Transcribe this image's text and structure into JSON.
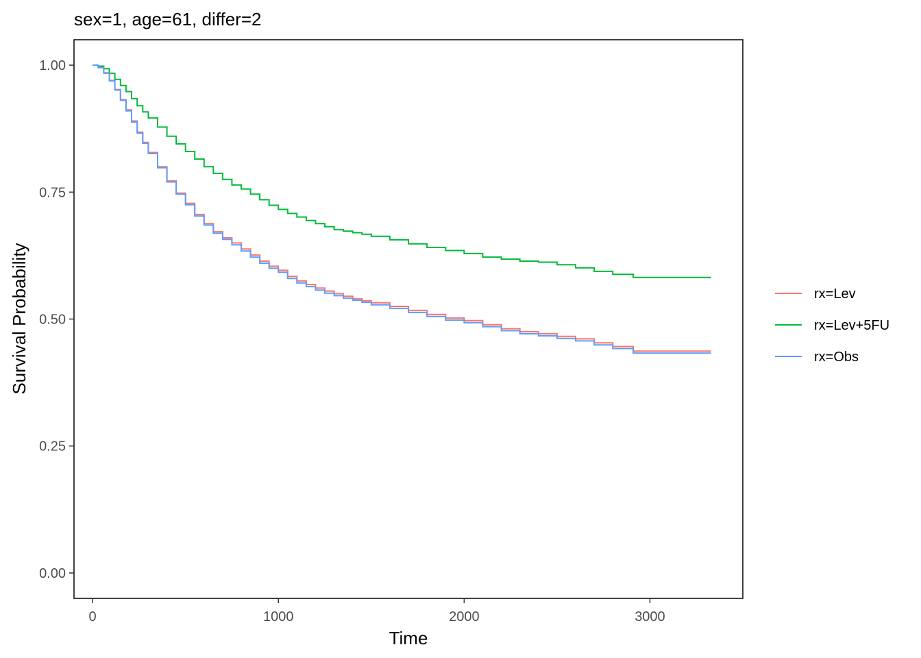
{
  "chart_data": {
    "type": "line",
    "title": "sex=1, age=61, differ=2",
    "xlabel": "Time",
    "ylabel": "Survival Probability",
    "xlim": [
      -100,
      3500
    ],
    "ylim": [
      -0.05,
      1.05
    ],
    "xticks": [
      0,
      1000,
      2000,
      3000
    ],
    "xtick_labels": [
      "0",
      "1000",
      "2000",
      "3000"
    ],
    "yticks": [
      0,
      0.25,
      0.5,
      0.75,
      1.0
    ],
    "ytick_labels": [
      "0.00",
      "0.25",
      "0.50",
      "0.75",
      "1.00"
    ],
    "grid": false,
    "legend_position": "right",
    "series": [
      {
        "name": "rx=Lev",
        "color": "#F8766D",
        "x": [
          0,
          30,
          60,
          90,
          120,
          150,
          180,
          210,
          240,
          270,
          300,
          350,
          400,
          450,
          500,
          550,
          600,
          650,
          700,
          750,
          800,
          850,
          900,
          950,
          1000,
          1050,
          1100,
          1150,
          1200,
          1250,
          1300,
          1350,
          1400,
          1450,
          1500,
          1600,
          1700,
          1800,
          1900,
          2000,
          2100,
          2200,
          2300,
          2400,
          2500,
          2600,
          2700,
          2800,
          2910,
          3000,
          3329
        ],
        "y": [
          1.0,
          0.996,
          0.985,
          0.97,
          0.952,
          0.932,
          0.912,
          0.89,
          0.868,
          0.848,
          0.828,
          0.8,
          0.772,
          0.748,
          0.728,
          0.706,
          0.688,
          0.672,
          0.66,
          0.65,
          0.638,
          0.626,
          0.614,
          0.604,
          0.596,
          0.584,
          0.575,
          0.568,
          0.561,
          0.555,
          0.55,
          0.545,
          0.54,
          0.536,
          0.532,
          0.525,
          0.517,
          0.509,
          0.502,
          0.497,
          0.489,
          0.481,
          0.475,
          0.471,
          0.466,
          0.461,
          0.453,
          0.446,
          0.437,
          0.437,
          0.437
        ]
      },
      {
        "name": "rx=Lev+5FU",
        "color": "#00BA38",
        "x": [
          0,
          30,
          60,
          90,
          120,
          150,
          180,
          210,
          240,
          270,
          300,
          350,
          400,
          450,
          500,
          550,
          600,
          650,
          700,
          750,
          800,
          850,
          900,
          950,
          1000,
          1050,
          1100,
          1150,
          1200,
          1250,
          1300,
          1350,
          1400,
          1450,
          1500,
          1600,
          1700,
          1800,
          1900,
          2000,
          2100,
          2200,
          2300,
          2400,
          2500,
          2600,
          2700,
          2800,
          2910,
          3000,
          3329
        ],
        "y": [
          1.0,
          0.998,
          0.993,
          0.984,
          0.972,
          0.96,
          0.948,
          0.934,
          0.92,
          0.908,
          0.896,
          0.878,
          0.86,
          0.845,
          0.83,
          0.815,
          0.8,
          0.787,
          0.775,
          0.764,
          0.756,
          0.746,
          0.735,
          0.724,
          0.716,
          0.708,
          0.701,
          0.694,
          0.688,
          0.682,
          0.676,
          0.673,
          0.67,
          0.667,
          0.663,
          0.656,
          0.648,
          0.641,
          0.635,
          0.629,
          0.622,
          0.618,
          0.614,
          0.612,
          0.607,
          0.601,
          0.594,
          0.588,
          0.582,
          0.582,
          0.582
        ]
      },
      {
        "name": "rx=Obs",
        "color": "#619CFF",
        "x": [
          0,
          30,
          60,
          90,
          120,
          150,
          180,
          210,
          240,
          270,
          300,
          350,
          400,
          450,
          500,
          550,
          600,
          650,
          700,
          750,
          800,
          850,
          900,
          950,
          1000,
          1050,
          1100,
          1150,
          1200,
          1250,
          1300,
          1350,
          1400,
          1450,
          1500,
          1600,
          1700,
          1800,
          1900,
          2000,
          2100,
          2200,
          2300,
          2400,
          2500,
          2600,
          2700,
          2800,
          2910,
          3000,
          3329
        ],
        "y": [
          1.0,
          0.995,
          0.984,
          0.969,
          0.951,
          0.931,
          0.91,
          0.888,
          0.866,
          0.846,
          0.826,
          0.798,
          0.77,
          0.746,
          0.725,
          0.703,
          0.685,
          0.669,
          0.657,
          0.646,
          0.634,
          0.622,
          0.61,
          0.6,
          0.592,
          0.58,
          0.571,
          0.564,
          0.557,
          0.551,
          0.546,
          0.541,
          0.537,
          0.533,
          0.528,
          0.521,
          0.513,
          0.505,
          0.498,
          0.493,
          0.485,
          0.477,
          0.471,
          0.467,
          0.462,
          0.457,
          0.449,
          0.442,
          0.433,
          0.433,
          0.433
        ]
      }
    ]
  }
}
